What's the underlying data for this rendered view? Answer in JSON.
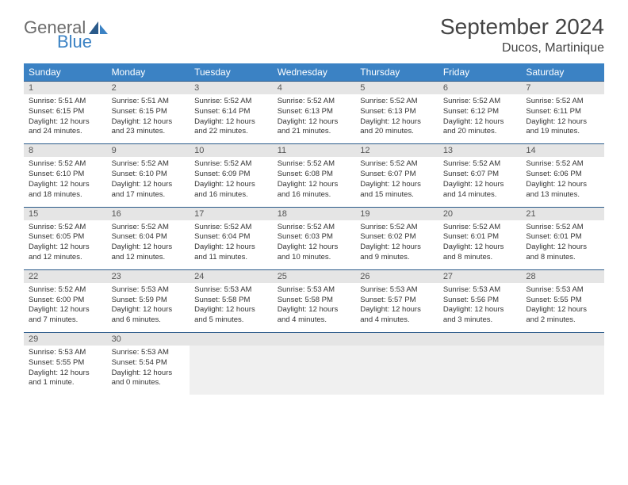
{
  "logo": {
    "word1": "General",
    "word2": "Blue",
    "icon_color": "#2a5a8a"
  },
  "title": "September 2024",
  "location": "Ducos, Martinique",
  "colors": {
    "header_bg": "#3b82c4",
    "header_text": "#ffffff",
    "daynum_bg": "#e5e5e5",
    "border": "#2a5a8a"
  },
  "weekdays": [
    "Sunday",
    "Monday",
    "Tuesday",
    "Wednesday",
    "Thursday",
    "Friday",
    "Saturday"
  ],
  "weeks": [
    {
      "nums": [
        "1",
        "2",
        "3",
        "4",
        "5",
        "6",
        "7"
      ],
      "cells": [
        {
          "sunrise": "Sunrise: 5:51 AM",
          "sunset": "Sunset: 6:15 PM",
          "day1": "Daylight: 12 hours",
          "day2": "and 24 minutes."
        },
        {
          "sunrise": "Sunrise: 5:51 AM",
          "sunset": "Sunset: 6:15 PM",
          "day1": "Daylight: 12 hours",
          "day2": "and 23 minutes."
        },
        {
          "sunrise": "Sunrise: 5:52 AM",
          "sunset": "Sunset: 6:14 PM",
          "day1": "Daylight: 12 hours",
          "day2": "and 22 minutes."
        },
        {
          "sunrise": "Sunrise: 5:52 AM",
          "sunset": "Sunset: 6:13 PM",
          "day1": "Daylight: 12 hours",
          "day2": "and 21 minutes."
        },
        {
          "sunrise": "Sunrise: 5:52 AM",
          "sunset": "Sunset: 6:13 PM",
          "day1": "Daylight: 12 hours",
          "day2": "and 20 minutes."
        },
        {
          "sunrise": "Sunrise: 5:52 AM",
          "sunset": "Sunset: 6:12 PM",
          "day1": "Daylight: 12 hours",
          "day2": "and 20 minutes."
        },
        {
          "sunrise": "Sunrise: 5:52 AM",
          "sunset": "Sunset: 6:11 PM",
          "day1": "Daylight: 12 hours",
          "day2": "and 19 minutes."
        }
      ]
    },
    {
      "nums": [
        "8",
        "9",
        "10",
        "11",
        "12",
        "13",
        "14"
      ],
      "cells": [
        {
          "sunrise": "Sunrise: 5:52 AM",
          "sunset": "Sunset: 6:10 PM",
          "day1": "Daylight: 12 hours",
          "day2": "and 18 minutes."
        },
        {
          "sunrise": "Sunrise: 5:52 AM",
          "sunset": "Sunset: 6:10 PM",
          "day1": "Daylight: 12 hours",
          "day2": "and 17 minutes."
        },
        {
          "sunrise": "Sunrise: 5:52 AM",
          "sunset": "Sunset: 6:09 PM",
          "day1": "Daylight: 12 hours",
          "day2": "and 16 minutes."
        },
        {
          "sunrise": "Sunrise: 5:52 AM",
          "sunset": "Sunset: 6:08 PM",
          "day1": "Daylight: 12 hours",
          "day2": "and 16 minutes."
        },
        {
          "sunrise": "Sunrise: 5:52 AM",
          "sunset": "Sunset: 6:07 PM",
          "day1": "Daylight: 12 hours",
          "day2": "and 15 minutes."
        },
        {
          "sunrise": "Sunrise: 5:52 AM",
          "sunset": "Sunset: 6:07 PM",
          "day1": "Daylight: 12 hours",
          "day2": "and 14 minutes."
        },
        {
          "sunrise": "Sunrise: 5:52 AM",
          "sunset": "Sunset: 6:06 PM",
          "day1": "Daylight: 12 hours",
          "day2": "and 13 minutes."
        }
      ]
    },
    {
      "nums": [
        "15",
        "16",
        "17",
        "18",
        "19",
        "20",
        "21"
      ],
      "cells": [
        {
          "sunrise": "Sunrise: 5:52 AM",
          "sunset": "Sunset: 6:05 PM",
          "day1": "Daylight: 12 hours",
          "day2": "and 12 minutes."
        },
        {
          "sunrise": "Sunrise: 5:52 AM",
          "sunset": "Sunset: 6:04 PM",
          "day1": "Daylight: 12 hours",
          "day2": "and 12 minutes."
        },
        {
          "sunrise": "Sunrise: 5:52 AM",
          "sunset": "Sunset: 6:04 PM",
          "day1": "Daylight: 12 hours",
          "day2": "and 11 minutes."
        },
        {
          "sunrise": "Sunrise: 5:52 AM",
          "sunset": "Sunset: 6:03 PM",
          "day1": "Daylight: 12 hours",
          "day2": "and 10 minutes."
        },
        {
          "sunrise": "Sunrise: 5:52 AM",
          "sunset": "Sunset: 6:02 PM",
          "day1": "Daylight: 12 hours",
          "day2": "and 9 minutes."
        },
        {
          "sunrise": "Sunrise: 5:52 AM",
          "sunset": "Sunset: 6:01 PM",
          "day1": "Daylight: 12 hours",
          "day2": "and 8 minutes."
        },
        {
          "sunrise": "Sunrise: 5:52 AM",
          "sunset": "Sunset: 6:01 PM",
          "day1": "Daylight: 12 hours",
          "day2": "and 8 minutes."
        }
      ]
    },
    {
      "nums": [
        "22",
        "23",
        "24",
        "25",
        "26",
        "27",
        "28"
      ],
      "cells": [
        {
          "sunrise": "Sunrise: 5:52 AM",
          "sunset": "Sunset: 6:00 PM",
          "day1": "Daylight: 12 hours",
          "day2": "and 7 minutes."
        },
        {
          "sunrise": "Sunrise: 5:53 AM",
          "sunset": "Sunset: 5:59 PM",
          "day1": "Daylight: 12 hours",
          "day2": "and 6 minutes."
        },
        {
          "sunrise": "Sunrise: 5:53 AM",
          "sunset": "Sunset: 5:58 PM",
          "day1": "Daylight: 12 hours",
          "day2": "and 5 minutes."
        },
        {
          "sunrise": "Sunrise: 5:53 AM",
          "sunset": "Sunset: 5:58 PM",
          "day1": "Daylight: 12 hours",
          "day2": "and 4 minutes."
        },
        {
          "sunrise": "Sunrise: 5:53 AM",
          "sunset": "Sunset: 5:57 PM",
          "day1": "Daylight: 12 hours",
          "day2": "and 4 minutes."
        },
        {
          "sunrise": "Sunrise: 5:53 AM",
          "sunset": "Sunset: 5:56 PM",
          "day1": "Daylight: 12 hours",
          "day2": "and 3 minutes."
        },
        {
          "sunrise": "Sunrise: 5:53 AM",
          "sunset": "Sunset: 5:55 PM",
          "day1": "Daylight: 12 hours",
          "day2": "and 2 minutes."
        }
      ]
    },
    {
      "nums": [
        "29",
        "30",
        "",
        "",
        "",
        "",
        ""
      ],
      "cells": [
        {
          "sunrise": "Sunrise: 5:53 AM",
          "sunset": "Sunset: 5:55 PM",
          "day1": "Daylight: 12 hours",
          "day2": "and 1 minute."
        },
        {
          "sunrise": "Sunrise: 5:53 AM",
          "sunset": "Sunset: 5:54 PM",
          "day1": "Daylight: 12 hours",
          "day2": "and 0 minutes."
        },
        null,
        null,
        null,
        null,
        null
      ]
    }
  ]
}
